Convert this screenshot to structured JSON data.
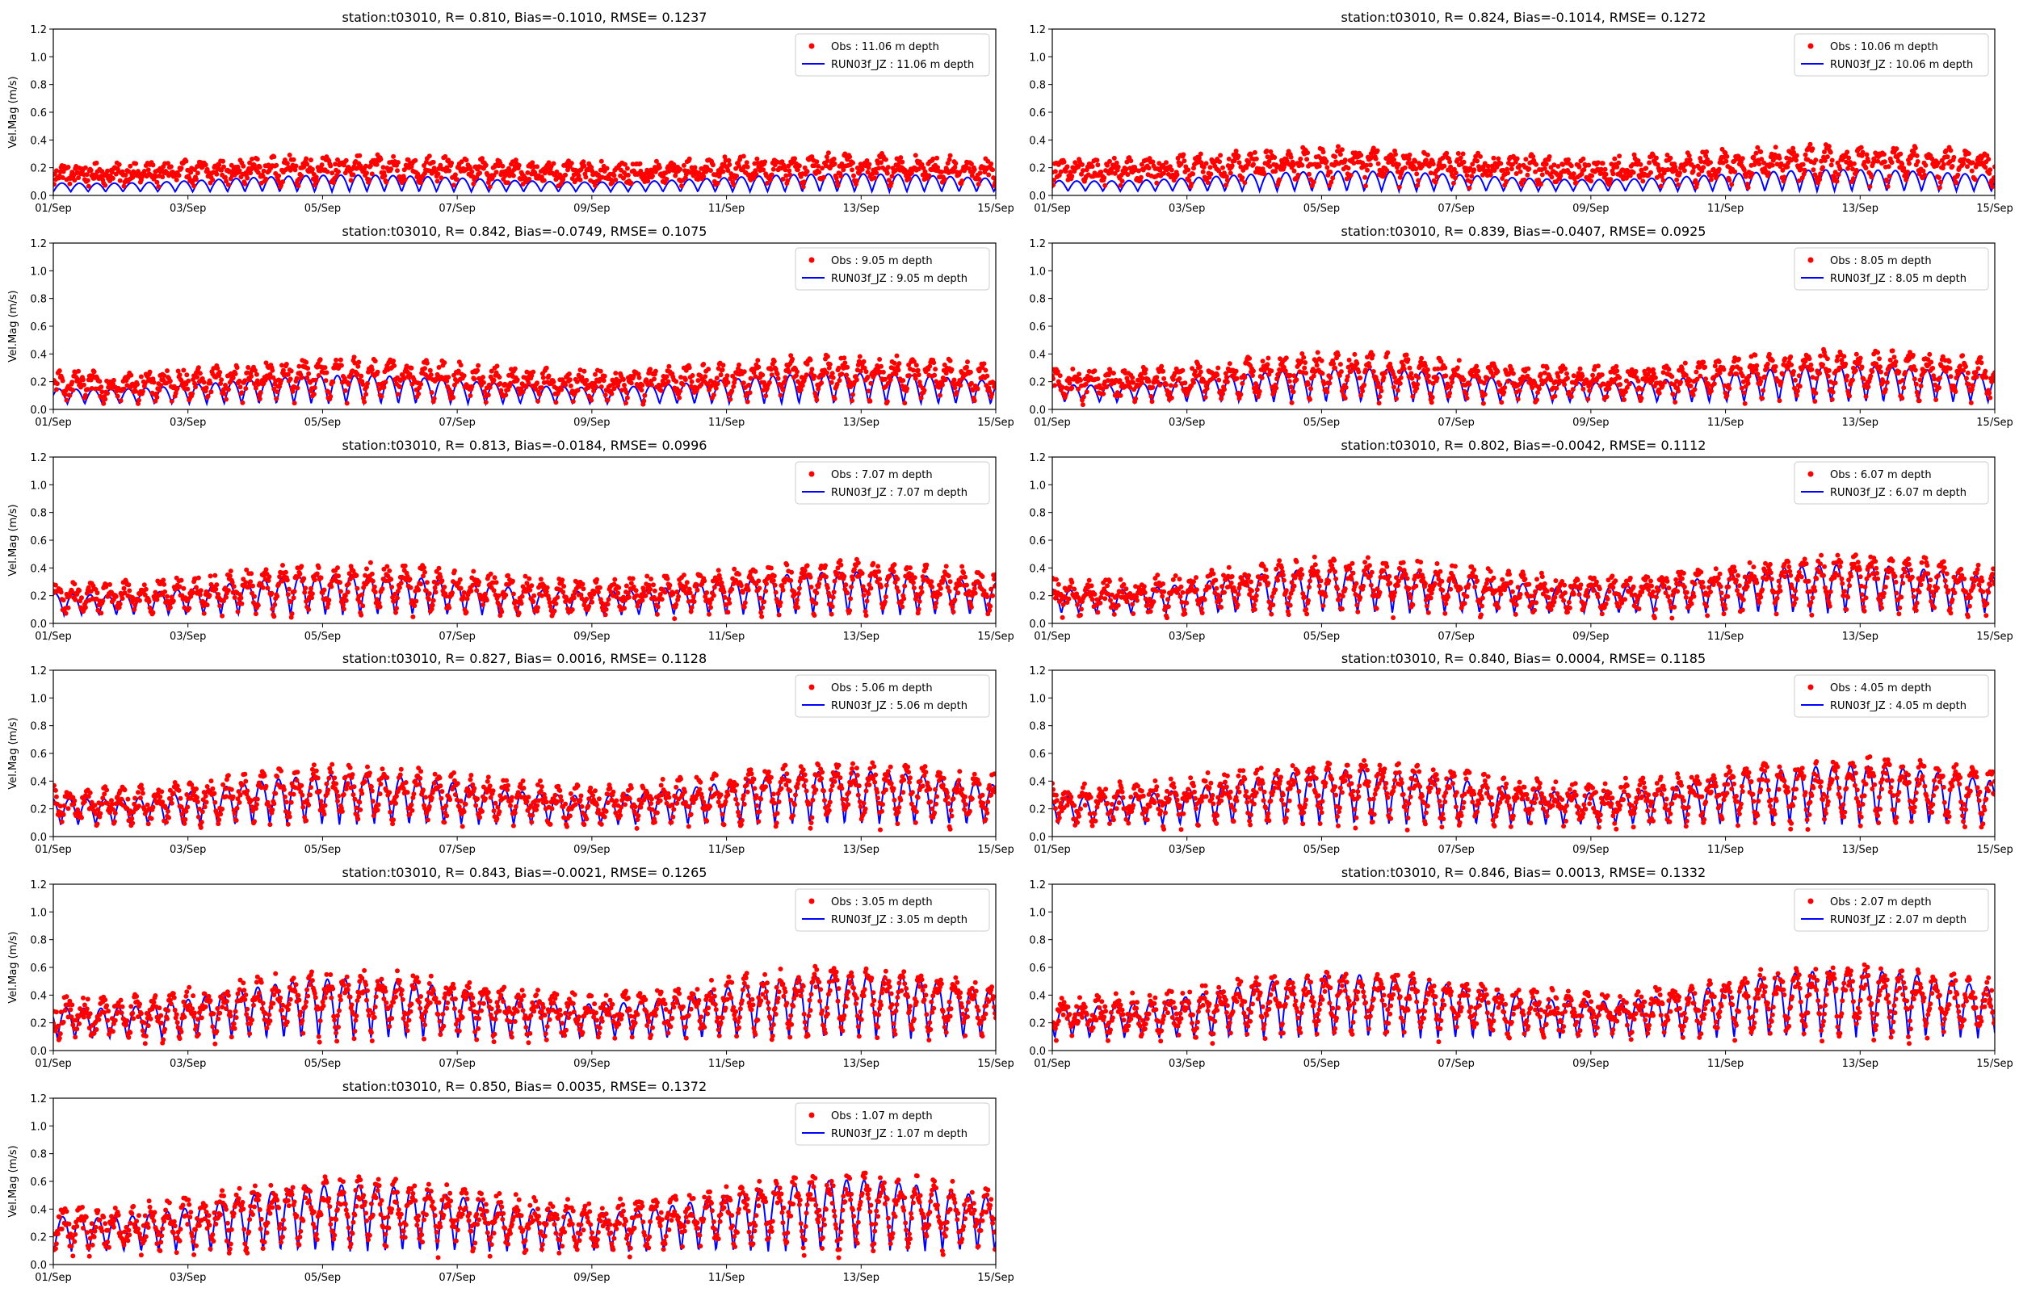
{
  "figure": {
    "obs_color": "#ff0000",
    "model_color": "#0000ff",
    "axis_color": "#000000"
  },
  "chart_data": [
    {
      "type": "scatter+line",
      "title": "station:t03010, R= 0.810, Bias=-0.1010, RMSE= 0.1237",
      "ylabel": "Vel.Mag (m/s)",
      "xlabel": "",
      "ylim": [
        0,
        1.2
      ],
      "yticks": [
        "0.0",
        "0.2",
        "0.4",
        "0.6",
        "0.8",
        "1.0",
        "1.2"
      ],
      "xlim_days": [
        1,
        15
      ],
      "xticks": [
        "01/Sep",
        "03/Sep",
        "05/Sep",
        "07/Sep",
        "09/Sep",
        "11/Sep",
        "13/Sep",
        "15/Sep"
      ],
      "legend_position": "top-right",
      "series": [
        {
          "name": "Obs : 11.06 m depth",
          "kind": "points",
          "mean": 0.22,
          "amp": 0.1,
          "spread": 0.06
        },
        {
          "name": "RUN03f_JZ : 11.06 m depth",
          "kind": "line",
          "mean": 0.11,
          "amp": 0.1
        }
      ]
    },
    {
      "type": "scatter+line",
      "title": "station:t03010, R= 0.824, Bias=-0.1014, RMSE= 0.1272",
      "ylabel": "",
      "xlabel": "",
      "ylim": [
        0,
        1.2
      ],
      "yticks": [
        "0.0",
        "0.2",
        "0.4",
        "0.6",
        "0.8",
        "1.0",
        "1.2"
      ],
      "xlim_days": [
        1,
        15
      ],
      "xticks": [
        "01/Sep",
        "03/Sep",
        "05/Sep",
        "07/Sep",
        "09/Sep",
        "11/Sep",
        "13/Sep",
        "15/Sep"
      ],
      "legend_position": "top-right",
      "series": [
        {
          "name": "Obs : 10.06 m depth",
          "kind": "points",
          "mean": 0.25,
          "amp": 0.14,
          "spread": 0.07
        },
        {
          "name": "RUN03f_JZ : 10.06 m depth",
          "kind": "line",
          "mean": 0.13,
          "amp": 0.12
        }
      ]
    },
    {
      "type": "scatter+line",
      "title": "station:t03010, R= 0.842, Bias=-0.0749, RMSE= 0.1075",
      "ylabel": "Vel.Mag (m/s)",
      "xlabel": "",
      "ylim": [
        0,
        1.2
      ],
      "yticks": [
        "0.0",
        "0.2",
        "0.4",
        "0.6",
        "0.8",
        "1.0",
        "1.2"
      ],
      "xlim_days": [
        1,
        15
      ],
      "xticks": [
        "01/Sep",
        "03/Sep",
        "05/Sep",
        "07/Sep",
        "09/Sep",
        "11/Sep",
        "13/Sep",
        "15/Sep"
      ],
      "legend_position": "top-right",
      "series": [
        {
          "name": "Obs : 9.05 m depth",
          "kind": "points",
          "mean": 0.25,
          "amp": 0.17,
          "spread": 0.07
        },
        {
          "name": "RUN03f_JZ : 9.05 m depth",
          "kind": "line",
          "mean": 0.18,
          "amp": 0.17
        }
      ]
    },
    {
      "type": "scatter+line",
      "title": "station:t03010, R= 0.839, Bias=-0.0407, RMSE= 0.0925",
      "ylabel": "",
      "xlabel": "",
      "ylim": [
        0,
        1.2
      ],
      "yticks": [
        "0.0",
        "0.2",
        "0.4",
        "0.6",
        "0.8",
        "1.0",
        "1.2"
      ],
      "xlim_days": [
        1,
        15
      ],
      "xticks": [
        "01/Sep",
        "03/Sep",
        "05/Sep",
        "07/Sep",
        "09/Sep",
        "11/Sep",
        "13/Sep",
        "15/Sep"
      ],
      "legend_position": "top-right",
      "series": [
        {
          "name": "Obs : 8.05 m depth",
          "kind": "points",
          "mean": 0.27,
          "amp": 0.2,
          "spread": 0.07
        },
        {
          "name": "RUN03f_JZ : 8.05 m depth",
          "kind": "line",
          "mean": 0.22,
          "amp": 0.2
        }
      ]
    },
    {
      "type": "scatter+line",
      "title": "station:t03010, R= 0.813, Bias=-0.0184, RMSE= 0.0996",
      "ylabel": "Vel.Mag (m/s)",
      "xlabel": "",
      "ylim": [
        0,
        1.2
      ],
      "yticks": [
        "0.0",
        "0.2",
        "0.4",
        "0.6",
        "0.8",
        "1.0",
        "1.2"
      ],
      "xlim_days": [
        1,
        15
      ],
      "xticks": [
        "01/Sep",
        "03/Sep",
        "05/Sep",
        "07/Sep",
        "09/Sep",
        "11/Sep",
        "13/Sep",
        "15/Sep"
      ],
      "legend_position": "top-right",
      "series": [
        {
          "name": "Obs : 7.07 m depth",
          "kind": "points",
          "mean": 0.28,
          "amp": 0.22,
          "spread": 0.07
        },
        {
          "name": "RUN03f_JZ : 7.07 m depth",
          "kind": "line",
          "mean": 0.26,
          "amp": 0.24
        }
      ]
    },
    {
      "type": "scatter+line",
      "title": "station:t03010, R= 0.802, Bias=-0.0042, RMSE= 0.1112",
      "ylabel": "",
      "xlabel": "",
      "ylim": [
        0,
        1.2
      ],
      "yticks": [
        "0.0",
        "0.2",
        "0.4",
        "0.6",
        "0.8",
        "1.0",
        "1.2"
      ],
      "xlim_days": [
        1,
        15
      ],
      "xticks": [
        "01/Sep",
        "03/Sep",
        "05/Sep",
        "07/Sep",
        "09/Sep",
        "11/Sep",
        "13/Sep",
        "15/Sep"
      ],
      "legend_position": "top-right",
      "series": [
        {
          "name": "Obs : 6.07 m depth",
          "kind": "points",
          "mean": 0.3,
          "amp": 0.24,
          "spread": 0.08
        },
        {
          "name": "RUN03f_JZ : 6.07 m depth",
          "kind": "line",
          "mean": 0.3,
          "amp": 0.27
        }
      ]
    },
    {
      "type": "scatter+line",
      "title": "station:t03010, R= 0.827, Bias= 0.0016, RMSE= 0.1128",
      "ylabel": "Vel.Mag (m/s)",
      "xlabel": "",
      "ylim": [
        0,
        1.2
      ],
      "yticks": [
        "0.0",
        "0.2",
        "0.4",
        "0.6",
        "0.8",
        "1.0",
        "1.2"
      ],
      "xlim_days": [
        1,
        15
      ],
      "xticks": [
        "01/Sep",
        "03/Sep",
        "05/Sep",
        "07/Sep",
        "09/Sep",
        "11/Sep",
        "13/Sep",
        "15/Sep"
      ],
      "legend_position": "top-right",
      "series": [
        {
          "name": "Obs : 5.06 m depth",
          "kind": "points",
          "mean": 0.33,
          "amp": 0.26,
          "spread": 0.08
        },
        {
          "name": "RUN03f_JZ : 5.06 m depth",
          "kind": "line",
          "mean": 0.34,
          "amp": 0.3
        }
      ]
    },
    {
      "type": "scatter+line",
      "title": "station:t03010, R= 0.840, Bias= 0.0004, RMSE= 0.1185",
      "ylabel": "",
      "xlabel": "",
      "ylim": [
        0,
        1.2
      ],
      "yticks": [
        "0.0",
        "0.2",
        "0.4",
        "0.6",
        "0.8",
        "1.0",
        "1.2"
      ],
      "xlim_days": [
        1,
        15
      ],
      "xticks": [
        "01/Sep",
        "03/Sep",
        "05/Sep",
        "07/Sep",
        "09/Sep",
        "11/Sep",
        "13/Sep",
        "15/Sep"
      ],
      "legend_position": "top-right",
      "series": [
        {
          "name": "Obs : 4.05 m depth",
          "kind": "points",
          "mean": 0.35,
          "amp": 0.28,
          "spread": 0.09
        },
        {
          "name": "RUN03f_JZ : 4.05 m depth",
          "kind": "line",
          "mean": 0.36,
          "amp": 0.33
        }
      ]
    },
    {
      "type": "scatter+line",
      "title": "station:t03010, R= 0.843, Bias=-0.0021, RMSE= 0.1265",
      "ylabel": "Vel.Mag (m/s)",
      "xlabel": "",
      "ylim": [
        0,
        1.2
      ],
      "yticks": [
        "0.0",
        "0.2",
        "0.4",
        "0.6",
        "0.8",
        "1.0",
        "1.2"
      ],
      "xlim_days": [
        1,
        15
      ],
      "xticks": [
        "01/Sep",
        "03/Sep",
        "05/Sep",
        "07/Sep",
        "09/Sep",
        "11/Sep",
        "13/Sep",
        "15/Sep"
      ],
      "legend_position": "top-right",
      "series": [
        {
          "name": "Obs : 3.05 m depth",
          "kind": "points",
          "mean": 0.37,
          "amp": 0.3,
          "spread": 0.09
        },
        {
          "name": "RUN03f_JZ : 3.05 m depth",
          "kind": "line",
          "mean": 0.38,
          "amp": 0.36
        }
      ]
    },
    {
      "type": "scatter+line",
      "title": "station:t03010, R= 0.846, Bias= 0.0013, RMSE= 0.1332",
      "ylabel": "",
      "xlabel": "",
      "ylim": [
        0,
        1.2
      ],
      "yticks": [
        "0.0",
        "0.2",
        "0.4",
        "0.6",
        "0.8",
        "1.0",
        "1.2"
      ],
      "xlim_days": [
        1,
        15
      ],
      "xticks": [
        "01/Sep",
        "03/Sep",
        "05/Sep",
        "07/Sep",
        "09/Sep",
        "11/Sep",
        "13/Sep",
        "15/Sep"
      ],
      "legend_position": "top-right",
      "series": [
        {
          "name": "Obs : 2.07 m depth",
          "kind": "points",
          "mean": 0.38,
          "amp": 0.31,
          "spread": 0.09
        },
        {
          "name": "RUN03f_JZ : 2.07 m depth",
          "kind": "line",
          "mean": 0.4,
          "amp": 0.38
        }
      ]
    },
    {
      "type": "scatter+line",
      "title": "station:t03010, R= 0.850, Bias= 0.0035, RMSE= 0.1372",
      "ylabel": "Vel.Mag (m/s)",
      "xlabel": "",
      "ylim": [
        0,
        1.2
      ],
      "yticks": [
        "0.0",
        "0.2",
        "0.4",
        "0.6",
        "0.8",
        "1.0",
        "1.2"
      ],
      "xlim_days": [
        1,
        15
      ],
      "xticks": [
        "01/Sep",
        "03/Sep",
        "05/Sep",
        "07/Sep",
        "09/Sep",
        "11/Sep",
        "13/Sep",
        "15/Sep"
      ],
      "legend_position": "top-right",
      "series": [
        {
          "name": "Obs : 1.07 m depth",
          "kind": "points",
          "mean": 0.4,
          "amp": 0.33,
          "spread": 0.1
        },
        {
          "name": "RUN03f_JZ : 1.07 m depth",
          "kind": "line",
          "mean": 0.42,
          "amp": 0.4
        }
      ]
    }
  ]
}
